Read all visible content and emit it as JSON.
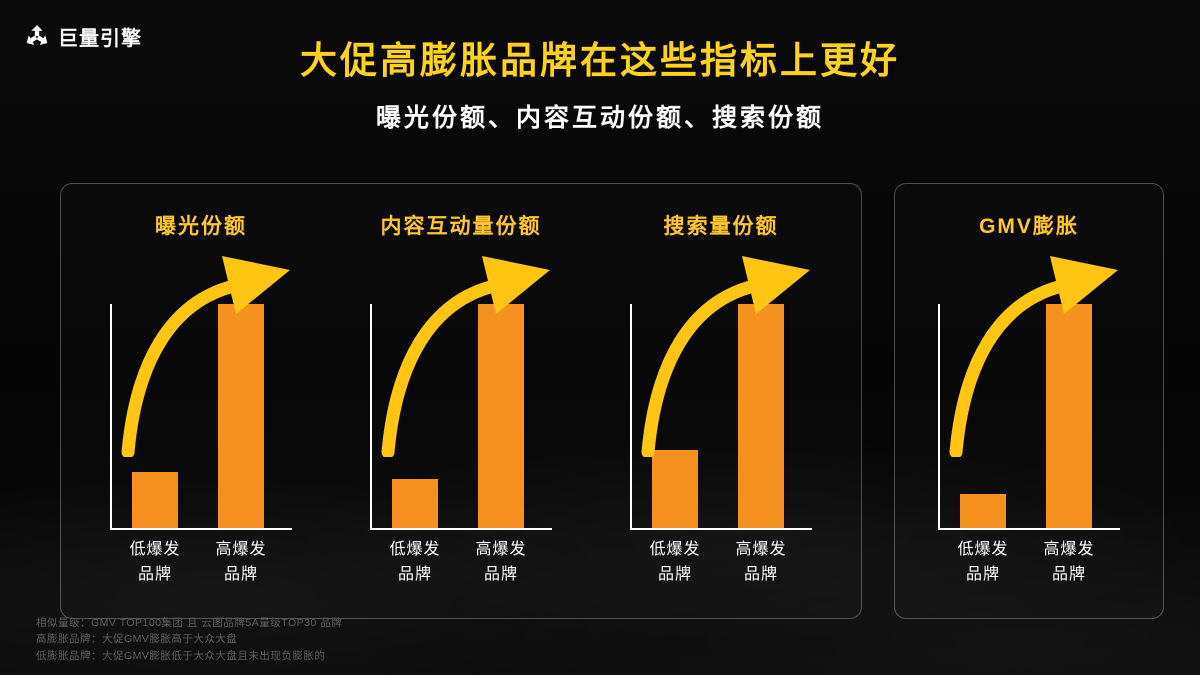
{
  "header": {
    "logo_text": "巨量引擎",
    "title": "大促高膨胀品牌在这些指标上更好",
    "subtitle": "曝光份额、内容互动份额、搜索份额"
  },
  "colors": {
    "title_yellow": "#FFD21E",
    "panel_title_yellow": "#FFC72C",
    "bar_orange": "#F5911E",
    "arrow_yellow": "#FFC513",
    "background": "#060606"
  },
  "chart_data": [
    {
      "type": "bar",
      "title": "曝光份额",
      "categories": [
        "低爆发\n品牌",
        "高爆发\n品牌"
      ],
      "values": [
        25,
        100
      ],
      "ylim": [
        0,
        100
      ],
      "xlabel": "",
      "ylabel": "",
      "grid": "off",
      "annotation": "upward-growth-arrow"
    },
    {
      "type": "bar",
      "title": "内容互动量份额",
      "categories": [
        "低爆发\n品牌",
        "高爆发\n品牌"
      ],
      "values": [
        22,
        100
      ],
      "ylim": [
        0,
        100
      ],
      "xlabel": "",
      "ylabel": "",
      "grid": "off",
      "annotation": "upward-growth-arrow"
    },
    {
      "type": "bar",
      "title": "搜索量份额",
      "categories": [
        "低爆发\n品牌",
        "高爆发\n品牌"
      ],
      "values": [
        35,
        100
      ],
      "ylim": [
        0,
        100
      ],
      "xlabel": "",
      "ylabel": "",
      "grid": "off",
      "annotation": "upward-growth-arrow"
    },
    {
      "type": "bar",
      "title": "GMV膨胀",
      "categories": [
        "低爆发\n品牌",
        "高爆发\n品牌"
      ],
      "values": [
        15,
        100
      ],
      "ylim": [
        0,
        100
      ],
      "xlabel": "",
      "ylabel": "",
      "grid": "off",
      "annotation": "upward-growth-arrow"
    }
  ],
  "footnotes": [
    "相似量级：GMV TOP100集团 且 云图品牌5A量级TOP30 品牌",
    "高膨胀品牌：大促GMV膨胀高于大众大盘",
    "低膨胀品牌：大促GMV膨胀低于大众大盘且未出现负膨胀的"
  ]
}
